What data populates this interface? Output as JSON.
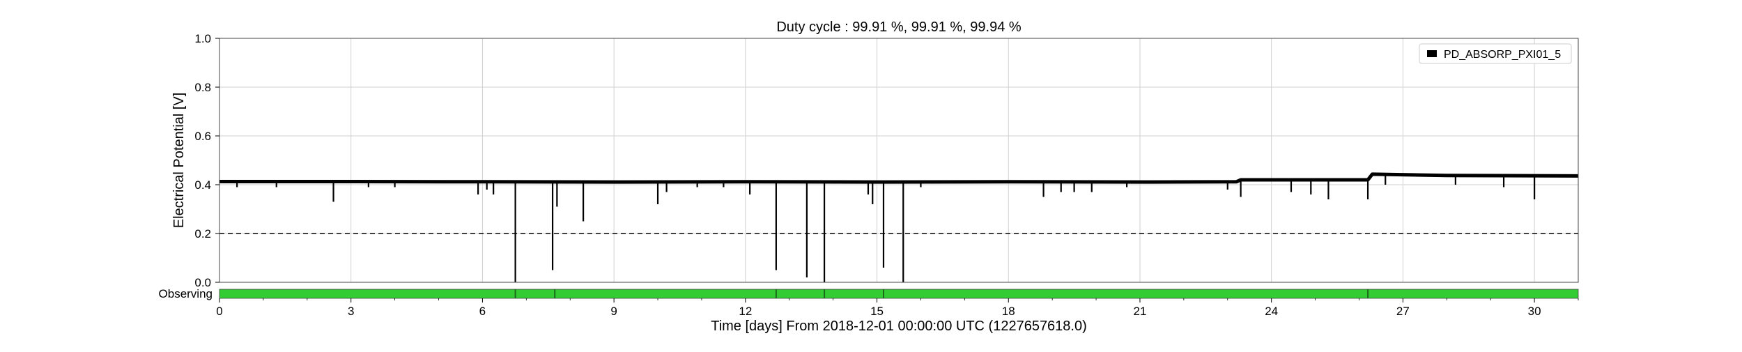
{
  "chart_data": {
    "type": "line",
    "title": "Duty cycle : 99.91 %, 99.91 %, 99.94 %",
    "xlabel": "Time [days] From 2018-12-01 00:00:00 UTC (1227657618.0)",
    "ylabel": "Electrical Potential [V]",
    "xlim": [
      0,
      31
    ],
    "ylim": [
      0,
      1.0
    ],
    "x_ticks": [
      0,
      3,
      6,
      9,
      12,
      15,
      18,
      21,
      24,
      27,
      30
    ],
    "y_ticks": [
      "0.0",
      "0.2",
      "0.4",
      "0.6",
      "0.8",
      "1.0"
    ],
    "grid": true,
    "legend": {
      "position": "top-right",
      "entries": [
        "PD_ABSORP_PXI01_5"
      ]
    },
    "threshold": 0.2,
    "series": [
      {
        "name": "PD_ABSORP_PXI01_5",
        "color": "#000000",
        "baseline": [
          [
            0,
            0.413
          ],
          [
            3,
            0.413
          ],
          [
            6,
            0.412
          ],
          [
            9,
            0.411
          ],
          [
            12,
            0.412
          ],
          [
            15,
            0.411
          ],
          [
            18,
            0.412
          ],
          [
            21,
            0.411
          ],
          [
            23.2,
            0.412
          ],
          [
            23.3,
            0.42
          ],
          [
            26.2,
            0.42
          ],
          [
            26.3,
            0.443
          ],
          [
            28,
            0.438
          ],
          [
            31,
            0.436
          ]
        ],
        "dips": [
          {
            "x": 0.4,
            "y": 0.39
          },
          {
            "x": 1.3,
            "y": 0.39
          },
          {
            "x": 2.6,
            "y": 0.33
          },
          {
            "x": 3.4,
            "y": 0.39
          },
          {
            "x": 4.0,
            "y": 0.39
          },
          {
            "x": 5.9,
            "y": 0.36
          },
          {
            "x": 6.1,
            "y": 0.38
          },
          {
            "x": 6.25,
            "y": 0.36
          },
          {
            "x": 6.75,
            "y": 0.0
          },
          {
            "x": 7.6,
            "y": 0.05
          },
          {
            "x": 7.7,
            "y": 0.31
          },
          {
            "x": 8.3,
            "y": 0.25
          },
          {
            "x": 10.0,
            "y": 0.32
          },
          {
            "x": 10.2,
            "y": 0.37
          },
          {
            "x": 10.9,
            "y": 0.39
          },
          {
            "x": 11.5,
            "y": 0.39
          },
          {
            "x": 12.1,
            "y": 0.36
          },
          {
            "x": 12.7,
            "y": 0.05
          },
          {
            "x": 13.4,
            "y": 0.02
          },
          {
            "x": 13.8,
            "y": 0.0
          },
          {
            "x": 14.8,
            "y": 0.36
          },
          {
            "x": 14.9,
            "y": 0.32
          },
          {
            "x": 15.15,
            "y": 0.06
          },
          {
            "x": 15.6,
            "y": 0.0
          },
          {
            "x": 16.0,
            "y": 0.39
          },
          {
            "x": 18.8,
            "y": 0.35
          },
          {
            "x": 19.2,
            "y": 0.37
          },
          {
            "x": 19.5,
            "y": 0.37
          },
          {
            "x": 19.9,
            "y": 0.37
          },
          {
            "x": 20.7,
            "y": 0.39
          },
          {
            "x": 23.0,
            "y": 0.38
          },
          {
            "x": 23.3,
            "y": 0.35
          },
          {
            "x": 24.45,
            "y": 0.37
          },
          {
            "x": 24.9,
            "y": 0.36
          },
          {
            "x": 25.3,
            "y": 0.34
          },
          {
            "x": 26.2,
            "y": 0.34
          },
          {
            "x": 26.6,
            "y": 0.4
          },
          {
            "x": 28.2,
            "y": 0.4
          },
          {
            "x": 29.3,
            "y": 0.39
          },
          {
            "x": 30.0,
            "y": 0.34
          }
        ]
      }
    ],
    "segments": {
      "label": "Observing",
      "color": "#33cc33",
      "breaks": [
        6.75,
        7.65,
        12.7,
        13.8,
        15.15,
        26.2
      ]
    }
  }
}
